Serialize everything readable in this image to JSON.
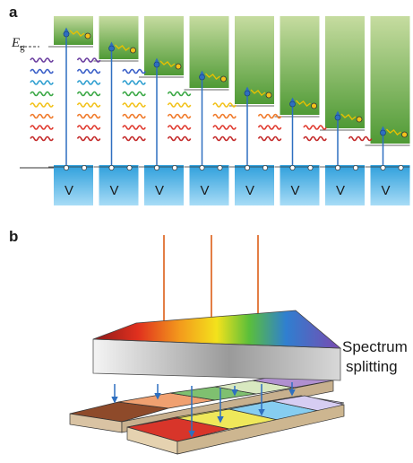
{
  "panel_a": {
    "label": "a",
    "eg_symbol": "E",
    "eg_subscript": "g",
    "cell_count": 8,
    "valence_label": "V",
    "wave_colors_all": [
      "#6b3fa0",
      "#3a5fc8",
      "#2f9fd0",
      "#3aa845",
      "#f2c21b",
      "#f07a2a",
      "#e03a2f",
      "#c42a2a"
    ],
    "waves_absorbed_per_cell": [
      8,
      8,
      7,
      5,
      4,
      3,
      2,
      1
    ],
    "colors": {
      "conduction_top": "#c6dca0",
      "conduction_bottom": "#4f9a35",
      "valence_top": "#3aa7e0",
      "valence_bottom": "#a4d9f4",
      "arrow": "#2e6fc0",
      "relax": "#e8c000"
    }
  },
  "panel_b": {
    "label": "b",
    "splitter_label_line1": "Spectrum",
    "splitter_label_line2": "splitting",
    "incident_arrow_color": "#e07030",
    "down_arrow_color": "#2e6fc0",
    "cell_colors_back": [
      "#8e4a2a",
      "#f0a070",
      "#7fc070",
      "#d8e8c0",
      "#b090d0"
    ],
    "cell_colors_front": [
      "#d03020",
      "#f0e850",
      "#80ccf0",
      "#d0c8f0"
    ]
  }
}
